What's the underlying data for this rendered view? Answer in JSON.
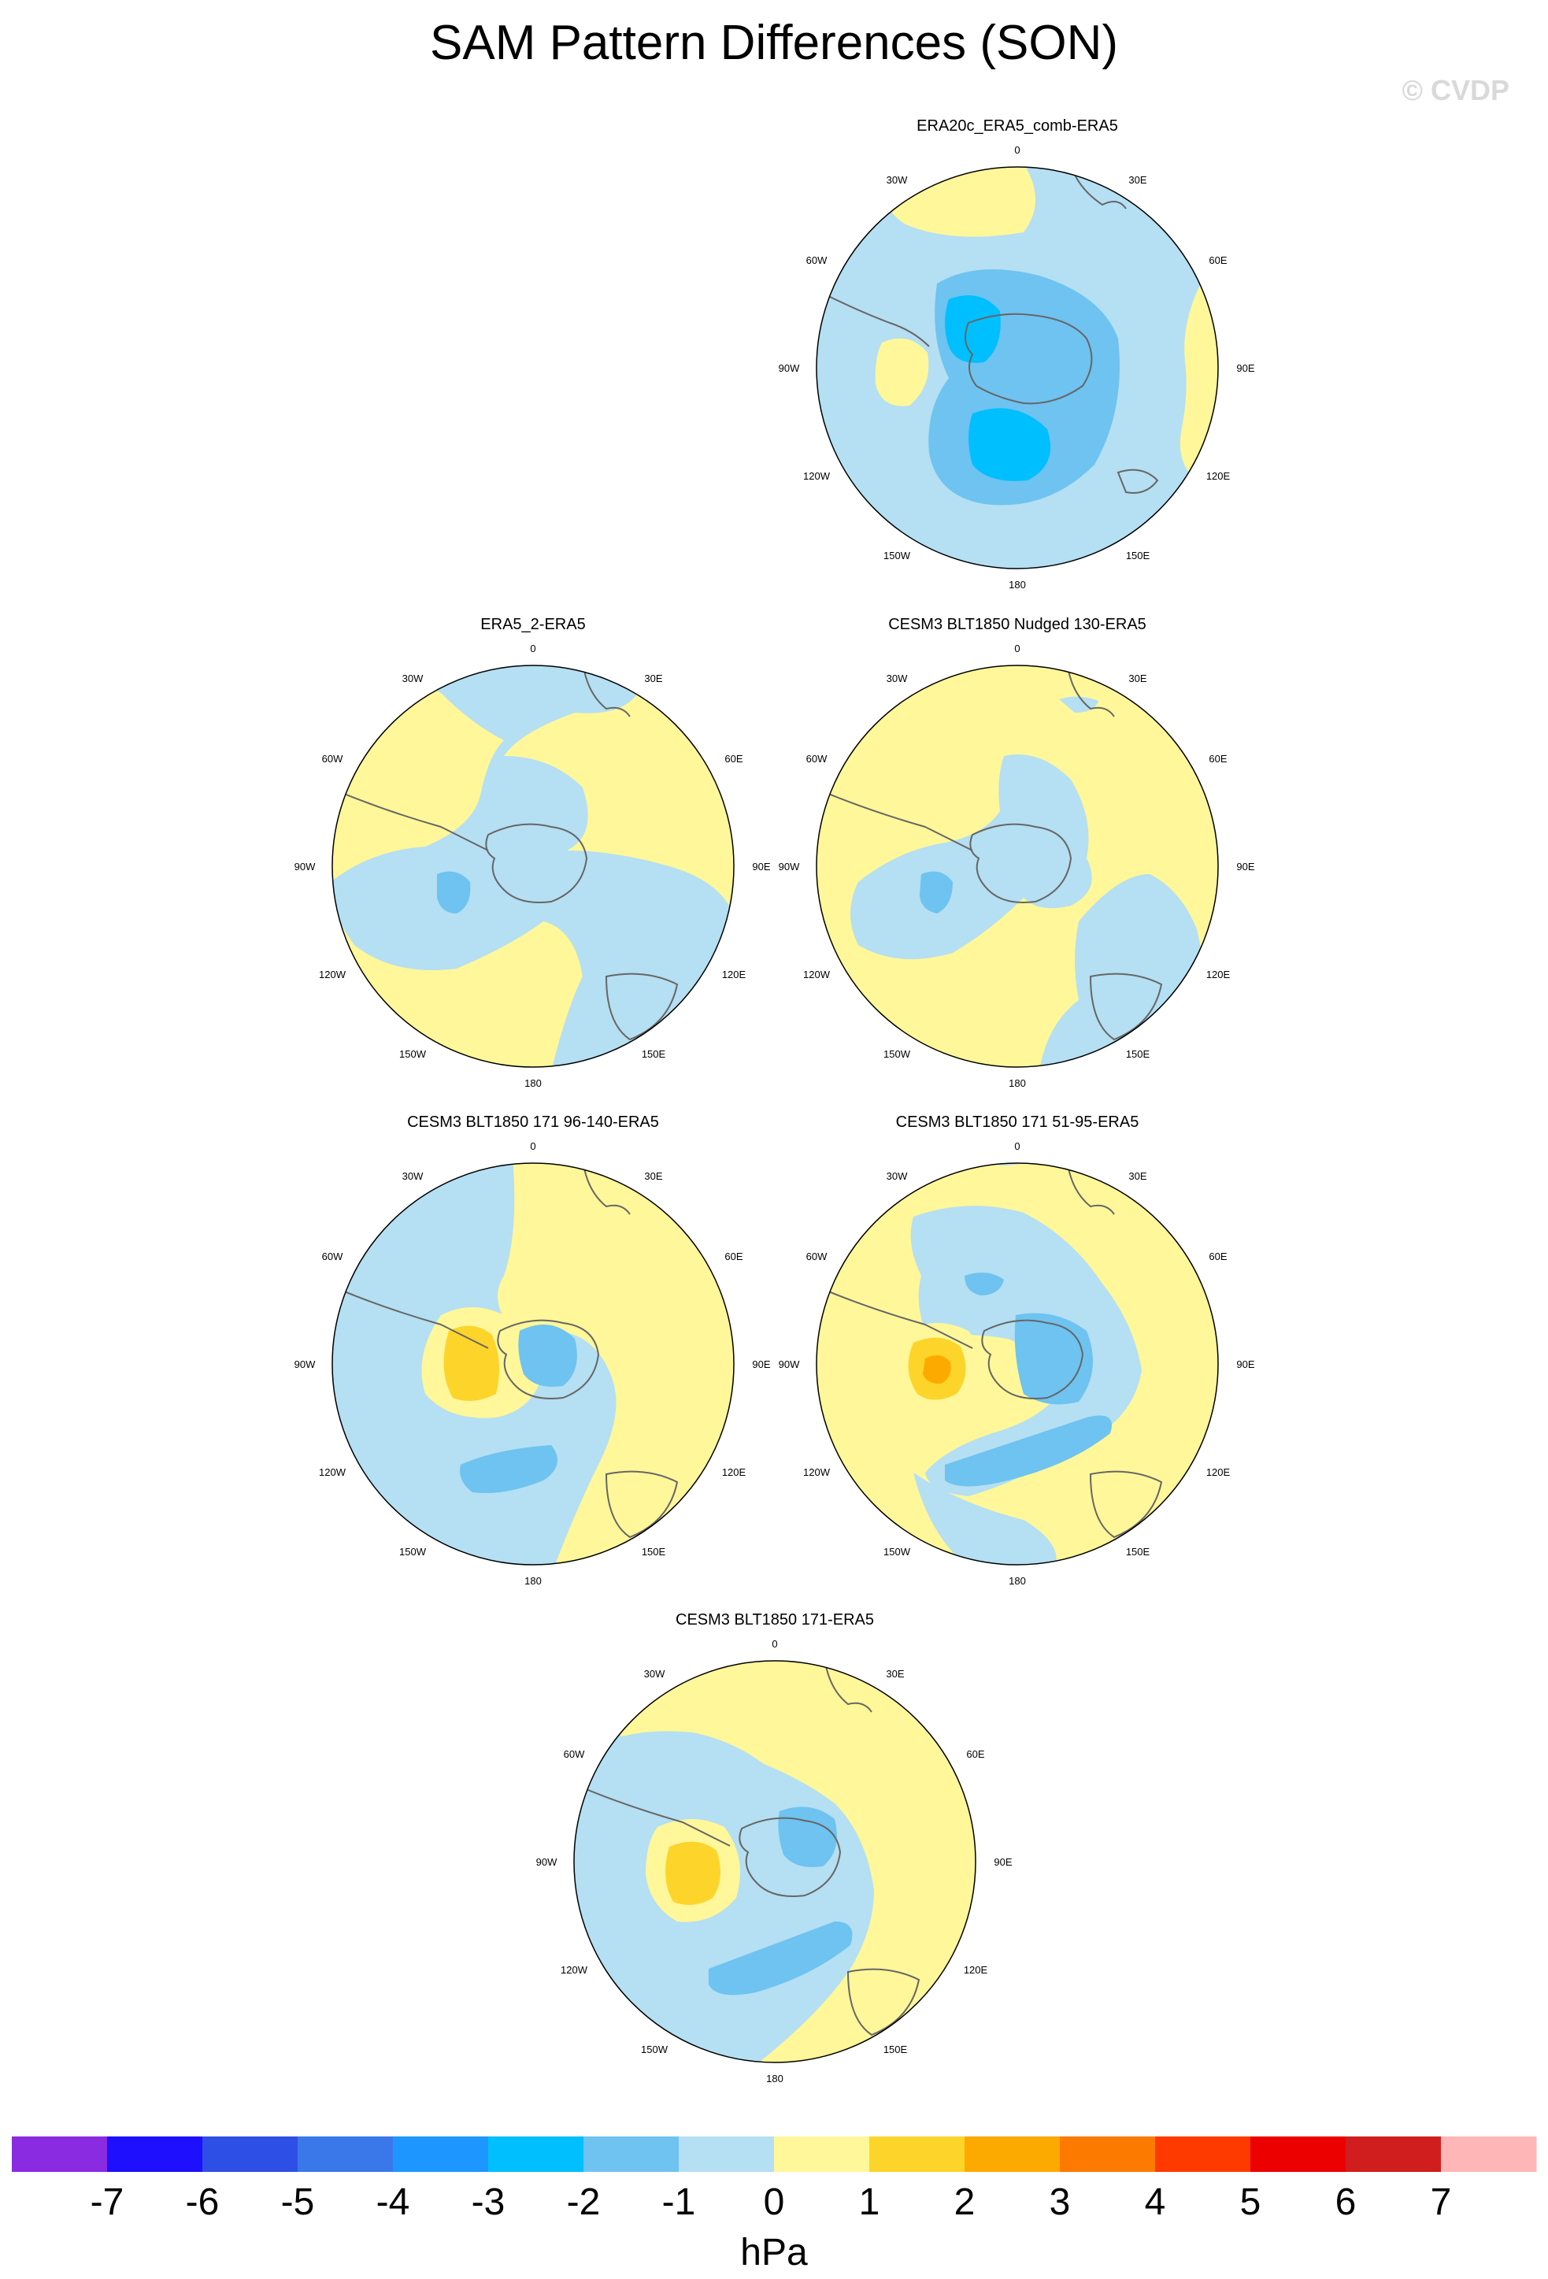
{
  "title": "SAM Pattern Differences (SON)",
  "watermark": "© CVDP",
  "lon_labels": {
    "top": "0",
    "bottom": "180",
    "upper_left": "30W",
    "upper_right": "30E",
    "left_upper": "60W",
    "right_upper": "60E",
    "left": "90W",
    "right": "90E",
    "left_lower": "120W",
    "right_lower": "120E",
    "lower_left": "150W",
    "lower_right": "150E"
  },
  "panels": [
    {
      "id": "p1",
      "title": "ERA20c_ERA5_comb-ERA5",
      "background": "#b5dff2"
    },
    {
      "id": "p2",
      "title": "ERA5_2-ERA5",
      "background": "#fff799"
    },
    {
      "id": "p3",
      "title": "CESM3 BLT1850 Nudged 130-ERA5",
      "background": "#fff799"
    },
    {
      "id": "p4",
      "title": "CESM3 BLT1850 171 96-140-ERA5",
      "background": "#b5dff2"
    },
    {
      "id": "p5",
      "title": "CESM3 BLT1850 171 51-95-ERA5",
      "background": "#fff799"
    },
    {
      "id": "p6",
      "title": "CESM3 BLT1850 171-ERA5",
      "background": "#b5dff2"
    }
  ],
  "colorbar": {
    "colors": [
      "#8a2be2",
      "#1e0fff",
      "#2e4fe6",
      "#3a78ea",
      "#1e96ff",
      "#00bfff",
      "#6ec3f0",
      "#b5dff2",
      "#fff799",
      "#fdd42a",
      "#fdaa00",
      "#fd7a00",
      "#ff3a00",
      "#ec0000",
      "#d01e1e",
      "#ffb6b6"
    ],
    "labels": [
      "-7",
      "-6",
      "-5",
      "-4",
      "-3",
      "-2",
      "-1",
      "0",
      "1",
      "2",
      "3",
      "4",
      "5",
      "6",
      "7"
    ],
    "units": "hPa"
  }
}
